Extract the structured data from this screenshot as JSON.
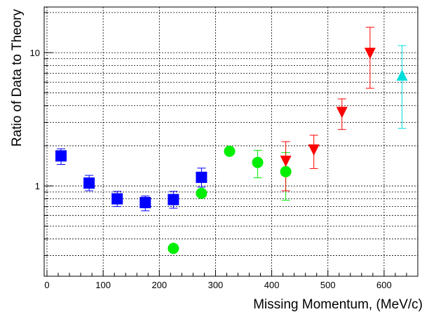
{
  "chart_data": {
    "type": "scatter",
    "title": "",
    "xlabel": "Missing Momentum, (MeV/c)",
    "ylabel": "Ratio of Data to Theory",
    "xlim": [
      -5,
      660
    ],
    "ylim": [
      0.21,
      22
    ],
    "y_scale": "log",
    "grid": true,
    "legend": "none",
    "x_ticks": [
      0,
      100,
      200,
      300,
      400,
      500,
      600
    ],
    "x_tick_labels": [
      "0",
      "100",
      "200",
      "300",
      "400",
      "500",
      "600"
    ],
    "y_ticks": [
      1,
      10
    ],
    "y_tick_labels": [
      "1",
      "10"
    ],
    "series": [
      {
        "marker": "square",
        "color": "#0000ff",
        "points": [
          {
            "x": 25,
            "y": 1.68,
            "ylow": 1.45,
            "yhigh": 1.9
          },
          {
            "x": 75,
            "y": 1.05,
            "ylow": 0.92,
            "yhigh": 1.2
          },
          {
            "x": 125,
            "y": 0.8,
            "ylow": 0.7,
            "yhigh": 0.91
          },
          {
            "x": 175,
            "y": 0.75,
            "ylow": 0.65,
            "yhigh": 0.84
          },
          {
            "x": 225,
            "y": 0.79,
            "ylow": 0.68,
            "yhigh": 0.91
          },
          {
            "x": 275,
            "y": 1.16,
            "ylow": 0.98,
            "yhigh": 1.36
          }
        ]
      },
      {
        "marker": "circle",
        "color": "#00ee00",
        "points": [
          {
            "x": 225,
            "y": 0.34,
            "ylow": 0.34,
            "yhigh": 0.34
          },
          {
            "x": 275,
            "y": 0.88,
            "ylow": 0.88,
            "yhigh": 0.88
          },
          {
            "x": 325,
            "y": 1.82,
            "ylow": 1.82,
            "yhigh": 1.82
          },
          {
            "x": 375,
            "y": 1.5,
            "ylow": 1.15,
            "yhigh": 1.85
          },
          {
            "x": 425,
            "y": 1.28,
            "ylow": 0.78,
            "yhigh": 1.78
          }
        ]
      },
      {
        "marker": "triangle-down",
        "color": "#ff0000",
        "points": [
          {
            "x": 425,
            "y": 1.55,
            "ylow": 0.92,
            "yhigh": 2.15
          },
          {
            "x": 475,
            "y": 1.88,
            "ylow": 1.35,
            "yhigh": 2.4
          },
          {
            "x": 525,
            "y": 3.6,
            "ylow": 2.65,
            "yhigh": 4.5
          },
          {
            "x": 575,
            "y": 10.0,
            "ylow": 5.4,
            "yhigh": 15.5
          }
        ]
      },
      {
        "marker": "triangle-up",
        "color": "#00dddd",
        "points": [
          {
            "x": 632,
            "y": 6.7,
            "ylow": 2.7,
            "yhigh": 11.3
          }
        ]
      }
    ]
  }
}
